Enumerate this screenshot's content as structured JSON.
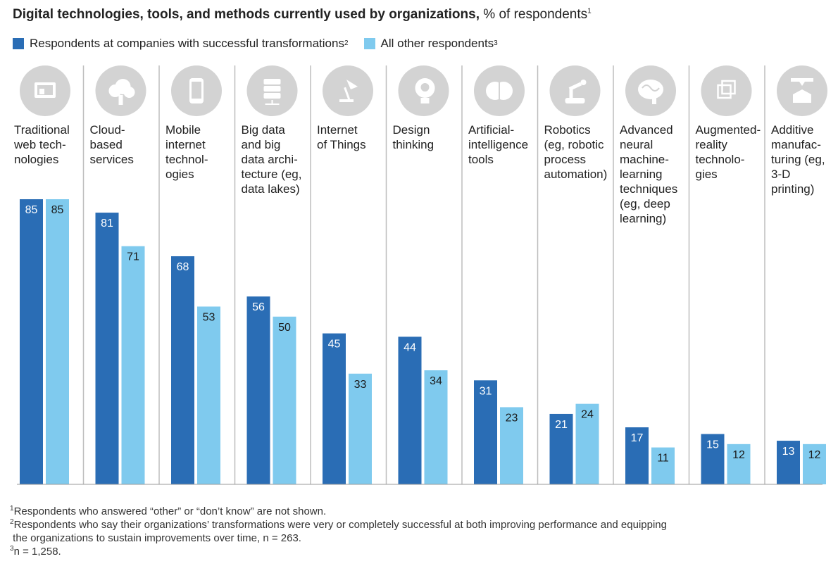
{
  "header": {
    "title": "Digital technologies, tools, and methods currently used by organizations,",
    "subtitle": "% of respondents",
    "subtitle_sup": "1"
  },
  "colors": {
    "successful": "#2a6db5",
    "other": "#7fcaee",
    "icon_circle": "#d3d3d3",
    "divider": "#bdbdbd"
  },
  "legend": [
    {
      "label": "Respondents at companies with successful transformations",
      "sup": "2",
      "color": "#2a6db5"
    },
    {
      "label": "All other respondents",
      "sup": "3",
      "color": "#7fcaee"
    }
  ],
  "chart_data": {
    "type": "bar",
    "categories": [
      "Traditional web technologies",
      "Cloud-based services",
      "Mobile internet technologies",
      "Big data and big data architecture (eg, data lakes)",
      "Internet of Things",
      "Design thinking",
      "Artificial-intelligence tools",
      "Robotics (eg, robotic process automation)",
      "Advanced neural machine-learning techniques (eg, deep learning)",
      "Augmented-reality technologies",
      "Additive manufacturing (eg, 3-D printing)"
    ],
    "category_label_lines": [
      [
        "Traditional",
        "web tech-",
        "nologies"
      ],
      [
        "Cloud-",
        "based",
        "services"
      ],
      [
        "Mobile",
        "internet",
        "technol-",
        "ogies"
      ],
      [
        "Big data",
        "and big",
        "data archi-",
        "tecture (eg,",
        "data lakes)"
      ],
      [
        "Internet",
        "of Things"
      ],
      [
        "Design",
        "thinking"
      ],
      [
        "Artificial-",
        "intelligence",
        "tools"
      ],
      [
        "Robotics",
        "(eg, robotic",
        "process",
        "automation)"
      ],
      [
        "Advanced",
        "neural",
        "machine-",
        "learning",
        "techniques",
        "(eg, deep",
        "learning)"
      ],
      [
        "Augmented-",
        "reality",
        "technolo-",
        "gies"
      ],
      [
        "Additive",
        "manufac-",
        "turing (eg,",
        "3-D",
        "printing)"
      ]
    ],
    "icons": [
      "web-screen-icon",
      "cloud-icon",
      "mobile-phone-icon",
      "database-server-icon",
      "desk-lamp-icon",
      "head-lightbulb-icon",
      "brain-circuit-icon",
      "robot-arm-icon",
      "brain-icon",
      "ar-cube-icon",
      "3d-printer-icon"
    ],
    "series": [
      {
        "name": "Respondents at companies with successful transformations",
        "values": [
          85,
          81,
          68,
          56,
          45,
          44,
          31,
          21,
          17,
          15,
          13
        ]
      },
      {
        "name": "All other respondents",
        "values": [
          85,
          71,
          53,
          50,
          33,
          34,
          23,
          24,
          11,
          12,
          12
        ]
      }
    ],
    "ylim": [
      0,
      85
    ],
    "grid": false
  },
  "footnotes": [
    {
      "sup": "1",
      "text": "Respondents who answered “other” or “don’t know” are not shown."
    },
    {
      "sup": "2",
      "text": "Respondents who say their organizations’ transformations were very or completely successful at both improving performance and equipping\n the organizations to sustain improvements over time, n = 263."
    },
    {
      "sup": "3",
      "text": "n = 1,258."
    }
  ]
}
